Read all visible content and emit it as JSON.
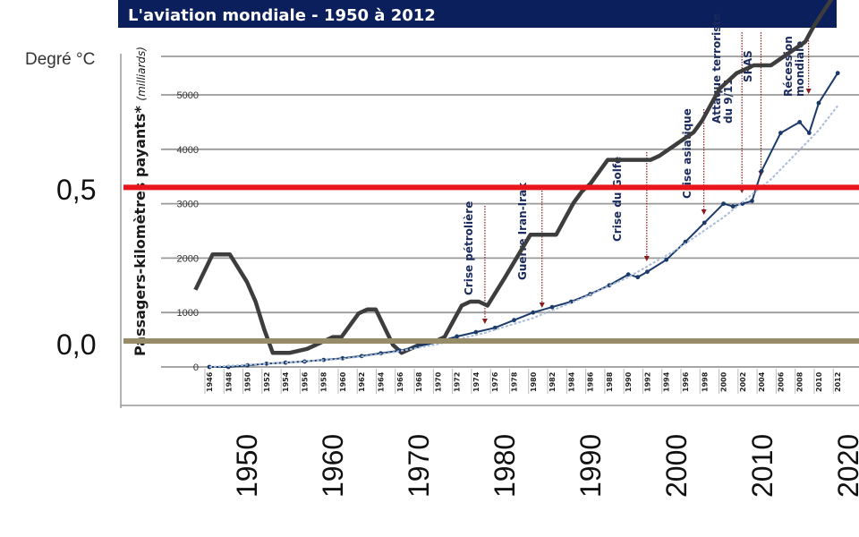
{
  "chart_data": {
    "type": "line",
    "title": "L'aviation mondiale - 1950 à 2012",
    "y_unit_left": "Degré °C",
    "ylabel": "Passagers-kilomètres payants*",
    "ylabel_suffix": "(milliards)",
    "colors": {
      "banner": "#0a1f5c",
      "temperature": "#3d3d3d",
      "traffic": "#1a3a6b",
      "trend": "#a8bcd8",
      "red_line": "#e8161c",
      "olive_line": "#978c68",
      "event_arrow": "#8b1a1a"
    },
    "temperature_axis": {
      "tick_labels": [
        "0,5",
        "0,0"
      ],
      "ticks": [
        0.5,
        0.0
      ],
      "x_decades": [
        "1950",
        "1960",
        "1970",
        "1980",
        "1990",
        "2000",
        "2010",
        "2020"
      ],
      "reference_lines": [
        {
          "value": 0.39,
          "color": "#e8161c"
        },
        {
          "value": 0.0,
          "color": "#978c68"
        }
      ]
    },
    "traffic_axis": {
      "yticks": [
        "0",
        "1000",
        "2000",
        "3000",
        "4000",
        "5000"
      ],
      "xticks": [
        "1946",
        "1948",
        "1950",
        "1952",
        "1954",
        "1956",
        "1958",
        "1960",
        "1962",
        "1964",
        "1966",
        "1968",
        "1970",
        "1972",
        "1974",
        "1976",
        "1978",
        "1980",
        "1982",
        "1984",
        "1986",
        "1988",
        "1990",
        "1992",
        "1994",
        "1996",
        "1998",
        "2000",
        "2002",
        "2004",
        "2006",
        "2008",
        "2010",
        "2012"
      ],
      "ylim": [
        0,
        5000
      ]
    },
    "series": [
      {
        "key": "temperature",
        "axis": "temperature",
        "x": [
          1944,
          1946,
          1948,
          1950,
          1951,
          1952,
          1953,
          1955,
          1957,
          1958,
          1959,
          1960,
          1961,
          1963,
          1964,
          1965,
          1967,
          1968,
          1970,
          1971,
          1972,
          1973,
          1974,
          1975,
          1976,
          1977,
          1978,
          1980,
          1983,
          1984,
          1985,
          1986,
          1987,
          1988,
          1989,
          1990,
          1991,
          1992,
          1994,
          1995,
          1997,
          1998,
          2000,
          2002,
          2003,
          2005,
          2007,
          2009,
          2011,
          2015,
          2016,
          2019
        ],
        "y": [
          0.13,
          0.22,
          0.22,
          0.15,
          0.1,
          0.03,
          -0.03,
          -0.03,
          -0.02,
          -0.01,
          0.0,
          0.01,
          0.01,
          0.07,
          0.08,
          0.08,
          -0.01,
          -0.03,
          -0.01,
          0.0,
          0.0,
          0.01,
          0.05,
          0.09,
          0.1,
          0.1,
          0.09,
          0.16,
          0.27,
          0.27,
          0.27,
          0.27,
          0.31,
          0.35,
          0.38,
          0.4,
          0.43,
          0.46,
          0.46,
          0.46,
          0.46,
          0.47,
          0.5,
          0.53,
          0.56,
          0.64,
          0.68,
          0.7,
          0.7,
          0.76,
          0.8,
          0.9
        ]
      },
      {
        "key": "traffic",
        "axis": "traffic",
        "x": [
          1946,
          1948,
          1950,
          1952,
          1954,
          1956,
          1958,
          1960,
          1962,
          1964,
          1966,
          1968,
          1970,
          1972,
          1974,
          1976,
          1978,
          1980,
          1982,
          1984,
          1986,
          1988,
          1990,
          1991,
          1992,
          1994,
          1996,
          1998,
          2000,
          2001,
          2002,
          2003,
          2004,
          2006,
          2008,
          2009,
          2010,
          2012
        ],
        "y": [
          0,
          0,
          30,
          60,
          80,
          100,
          130,
          160,
          200,
          250,
          300,
          380,
          460,
          560,
          640,
          720,
          860,
          1000,
          1100,
          1200,
          1340,
          1500,
          1700,
          1650,
          1750,
          1970,
          2300,
          2650,
          3000,
          2950,
          3000,
          3050,
          3600,
          4300,
          4500,
          4300,
          4850,
          5400
        ]
      },
      {
        "key": "trend",
        "axis": "traffic",
        "x": [
          1946,
          1950,
          1955,
          1960,
          1965,
          1970,
          1975,
          1980,
          1985,
          1990,
          1995,
          2000,
          2005,
          2010,
          2012
        ],
        "y": [
          0,
          40,
          90,
          150,
          260,
          420,
          630,
          900,
          1250,
          1650,
          2150,
          2750,
          3450,
          4350,
          4800
        ]
      }
    ],
    "annotations": [
      {
        "label": "Crise pétrolière",
        "year": 1974
      },
      {
        "label": "Guerre Iran-Irak",
        "year": 1980
      },
      {
        "label": "Crise du Golfe",
        "year": 1991
      },
      {
        "label": "Crise asiatique",
        "year": 1997
      },
      {
        "label": "Attaque terroriste",
        "label2": "du 9/11",
        "year": 2001
      },
      {
        "label": "SRAS",
        "year": 2003
      },
      {
        "label": "Récession",
        "label2": "mondiale",
        "year": 2008
      }
    ]
  }
}
